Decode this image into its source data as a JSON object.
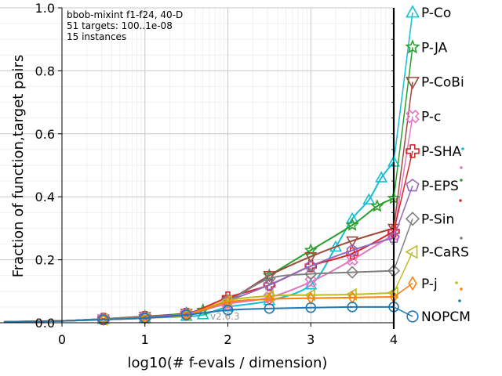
{
  "chart_data": {
    "type": "line",
    "xlabel": "log10(# f-evals / dimension)",
    "ylabel": "Fraction of function,target pairs",
    "xlim": [
      0,
      4
    ],
    "ylim": [
      0,
      1
    ],
    "x_ticks": [
      "0",
      "1",
      "2",
      "3",
      "4"
    ],
    "y_ticks": [
      "0.0",
      "0.2",
      "0.4",
      "0.6",
      "0.8",
      "1.0"
    ],
    "grid": true,
    "legend": "right",
    "info": {
      "line1": "bbob-mixint f1-f24, 40-D",
      "line2": "51 targets: 100..1e-08",
      "line3": "15 instances"
    },
    "version": "v2.6.3",
    "series": [
      {
        "name": "P-Co",
        "color": "#17becf",
        "marker": "triangle-up",
        "x": [
          -0.7,
          0.0,
          0.5,
          1.0,
          1.5,
          1.7,
          2.0,
          2.5,
          3.0,
          3.3,
          3.5,
          3.7,
          3.85,
          4.0
        ],
        "y": [
          0.003,
          0.006,
          0.01,
          0.015,
          0.02,
          0.025,
          0.05,
          0.07,
          0.12,
          0.24,
          0.33,
          0.39,
          0.46,
          0.51
        ],
        "legend_y": 0.985
      },
      {
        "name": "P-JA",
        "color": "#2ca02c",
        "marker": "star",
        "x": [
          -0.7,
          0.0,
          0.5,
          1.0,
          1.5,
          1.7,
          2.0,
          2.5,
          3.0,
          3.5,
          3.8,
          4.0
        ],
        "y": [
          0.003,
          0.006,
          0.012,
          0.02,
          0.03,
          0.04,
          0.07,
          0.15,
          0.23,
          0.31,
          0.37,
          0.395
        ],
        "legend_y": 0.875
      },
      {
        "name": "P-CoBi",
        "color": "#9b4a3c",
        "marker": "triangle-down",
        "x": [
          -0.7,
          0.0,
          0.5,
          1.0,
          1.5,
          2.0,
          2.5,
          3.0,
          3.5,
          4.0
        ],
        "y": [
          0.003,
          0.006,
          0.012,
          0.02,
          0.03,
          0.07,
          0.15,
          0.21,
          0.26,
          0.3
        ],
        "legend_y": 0.765
      },
      {
        "name": "P-c",
        "color": "#e377c2",
        "marker": "x-cross",
        "x": [
          -0.7,
          0.0,
          0.5,
          1.0,
          1.5,
          2.0,
          2.5,
          3.0,
          3.5,
          4.0
        ],
        "y": [
          0.003,
          0.006,
          0.012,
          0.018,
          0.028,
          0.06,
          0.08,
          0.13,
          0.2,
          0.28
        ],
        "legend_y": 0.655
      },
      {
        "name": "P-SHA",
        "color": "#d62728",
        "marker": "plus",
        "x": [
          -0.7,
          0.0,
          0.5,
          1.0,
          1.5,
          2.0,
          2.5,
          3.0,
          3.5,
          4.0
        ],
        "y": [
          0.003,
          0.006,
          0.012,
          0.018,
          0.028,
          0.08,
          0.12,
          0.18,
          0.22,
          0.29
        ],
        "legend_y": 0.545
      },
      {
        "name": "P-EPS",
        "color": "#9467bd",
        "marker": "pentagon",
        "x": [
          -0.7,
          0.0,
          0.5,
          1.0,
          1.5,
          2.0,
          2.5,
          3.0,
          3.5,
          4.0
        ],
        "y": [
          0.003,
          0.006,
          0.012,
          0.018,
          0.028,
          0.07,
          0.12,
          0.18,
          0.23,
          0.27
        ],
        "legend_y": 0.435
      },
      {
        "name": "P-Sin",
        "color": "#7f7f7f",
        "marker": "diamond",
        "x": [
          -0.7,
          0.0,
          0.5,
          1.0,
          1.5,
          2.0,
          2.5,
          3.0,
          3.5,
          4.0
        ],
        "y": [
          0.003,
          0.006,
          0.012,
          0.018,
          0.025,
          0.07,
          0.14,
          0.155,
          0.16,
          0.165
        ],
        "legend_y": 0.33
      },
      {
        "name": "P-CaRS",
        "color": "#bcbd22",
        "marker": "triangle-left",
        "x": [
          -0.7,
          0.0,
          0.5,
          1.0,
          1.5,
          2.0,
          2.5,
          3.0,
          3.5,
          4.0
        ],
        "y": [
          0.003,
          0.006,
          0.01,
          0.015,
          0.025,
          0.07,
          0.085,
          0.088,
          0.09,
          0.095
        ],
        "legend_y": 0.225
      },
      {
        "name": "P-j",
        "color": "#ff7f0e",
        "marker": "thin-diamond",
        "x": [
          -0.7,
          0.0,
          0.5,
          1.0,
          1.5,
          2.0,
          2.5,
          3.0,
          3.5,
          4.0
        ],
        "y": [
          0.003,
          0.006,
          0.01,
          0.015,
          0.025,
          0.065,
          0.075,
          0.078,
          0.08,
          0.082
        ],
        "legend_y": 0.125
      },
      {
        "name": "NOPCM",
        "color": "#1f77b4",
        "marker": "circle",
        "x": [
          -0.7,
          0.0,
          0.5,
          1.0,
          1.5,
          2.0,
          2.5,
          3.0,
          3.5,
          4.0
        ],
        "y": [
          0.003,
          0.006,
          0.01,
          0.015,
          0.025,
          0.04,
          0.045,
          0.048,
          0.05,
          0.05
        ],
        "legend_y": 0.02
      }
    ]
  }
}
